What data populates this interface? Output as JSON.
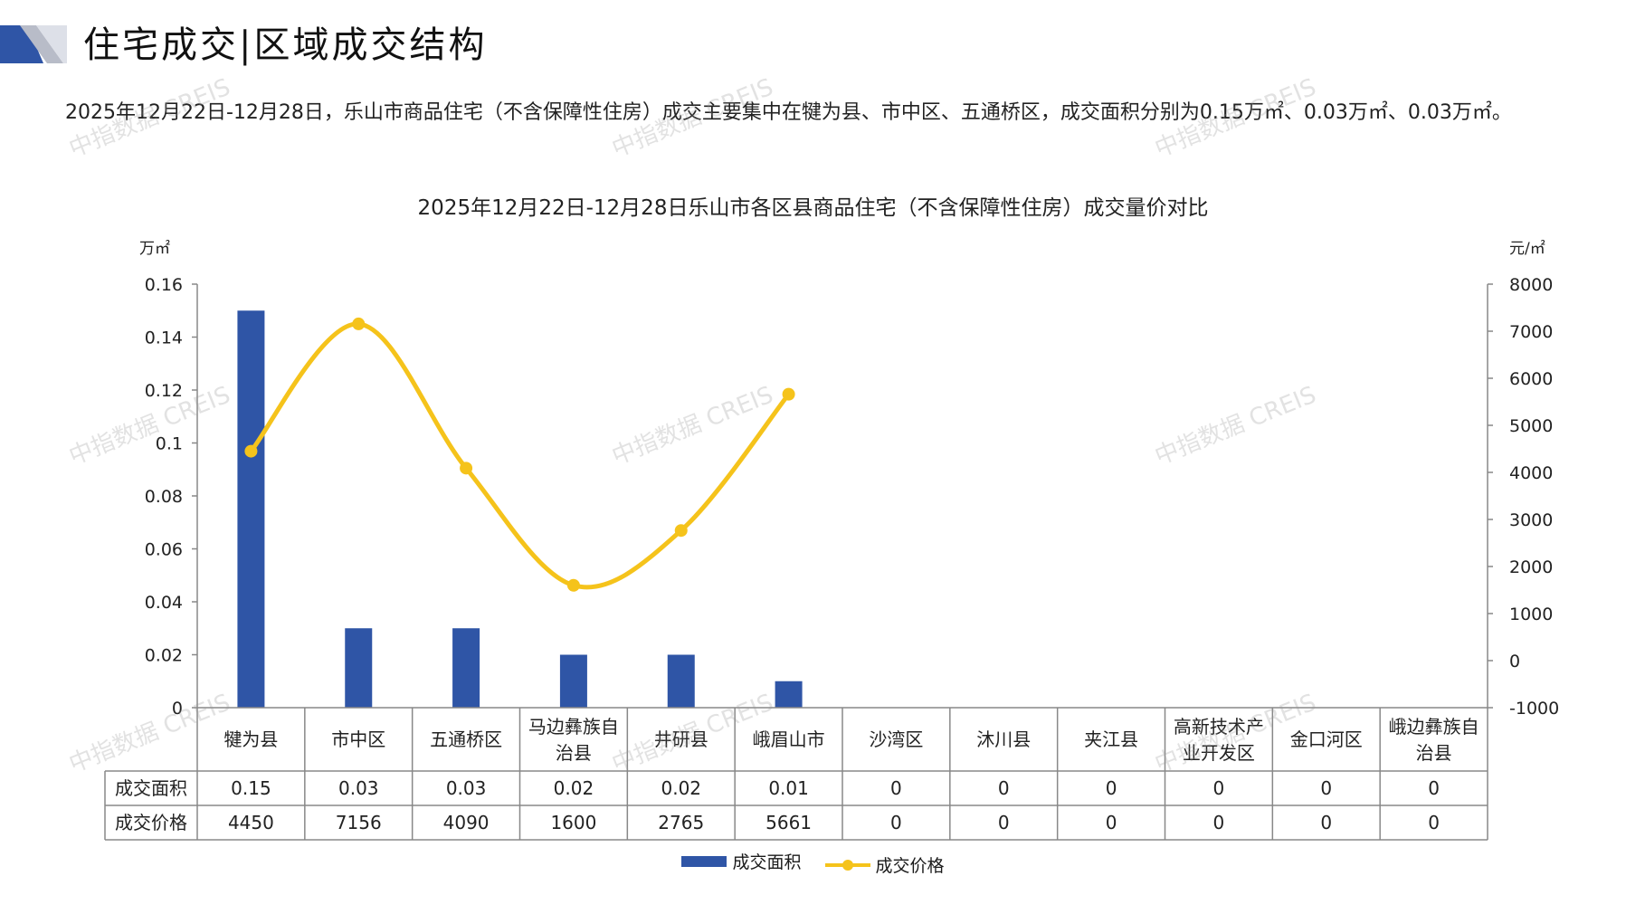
{
  "page": {
    "title": "住宅成交|区域成交结构",
    "summary": "2025年12月22日-12月28日，乐山市商品住宅（不含保障性住房）成交主要集中在犍为县、市中区、五通桥区，成交面积分别为0.15万㎡、0.03万㎡、0.03万㎡。",
    "watermark": "中指数据 CREIS"
  },
  "colors": {
    "bar": "#2f55a6",
    "line": "#f5c31b",
    "axis": "#888888",
    "logo_blue": "#2f55a6",
    "logo_gray": "#b8bcc8"
  },
  "chart_data": {
    "type": "bar",
    "title": "2025年12月22日-12月28日乐山市各区县商品住宅（不含保障性住房）成交量价对比",
    "categories": [
      "犍为县",
      "市中区",
      "五通桥区",
      "马边彝族自治县",
      "井研县",
      "峨眉山市",
      "沙湾区",
      "沐川县",
      "夹江县",
      "高新技术产业开发区",
      "金口河区",
      "峨边彝族自治县"
    ],
    "category_lines": [
      [
        "犍为县"
      ],
      [
        "市中区"
      ],
      [
        "五通桥区"
      ],
      [
        "马边彝族自",
        "治县"
      ],
      [
        "井研县"
      ],
      [
        "峨眉山市"
      ],
      [
        "沙湾区"
      ],
      [
        "沐川县"
      ],
      [
        "夹江县"
      ],
      [
        "高新技术产",
        "业开发区"
      ],
      [
        "金口河区"
      ],
      [
        "峨边彝族自",
        "治县"
      ]
    ],
    "series": [
      {
        "name": "成交面积",
        "type": "bar",
        "axis": "left",
        "values": [
          0.15,
          0.03,
          0.03,
          0.02,
          0.02,
          0.01,
          0,
          0,
          0,
          0,
          0,
          0
        ]
      },
      {
        "name": "成交价格",
        "type": "line",
        "axis": "right",
        "values": [
          4450,
          7156,
          4090,
          1600,
          2765,
          5661,
          0,
          0,
          0,
          0,
          0,
          0
        ],
        "plotted_count": 6
      }
    ],
    "table_values": {
      "area": [
        "0.15",
        "0.03",
        "0.03",
        "0.02",
        "0.02",
        "0.01",
        "0",
        "0",
        "0",
        "0",
        "0",
        "0"
      ],
      "price": [
        "4450",
        "7156",
        "4090",
        "1600",
        "2765",
        "5661",
        "0",
        "0",
        "0",
        "0",
        "0",
        "0"
      ]
    },
    "y_left": {
      "unit": "万㎡",
      "range": [
        0,
        0.16
      ],
      "ticks": [
        0,
        0.02,
        0.04,
        0.06,
        0.08,
        0.1,
        0.12,
        0.14,
        0.16
      ],
      "tick_labels": [
        "0",
        "0.02",
        "0.04",
        "0.06",
        "0.08",
        "0.1",
        "0.12",
        "0.14",
        "0.16"
      ]
    },
    "y_right": {
      "unit": "元/㎡",
      "range": [
        -1000,
        8000
      ],
      "ticks": [
        -1000,
        0,
        1000,
        2000,
        3000,
        4000,
        5000,
        6000,
        7000,
        8000
      ]
    },
    "legend_position": "bottom",
    "grid": false
  }
}
